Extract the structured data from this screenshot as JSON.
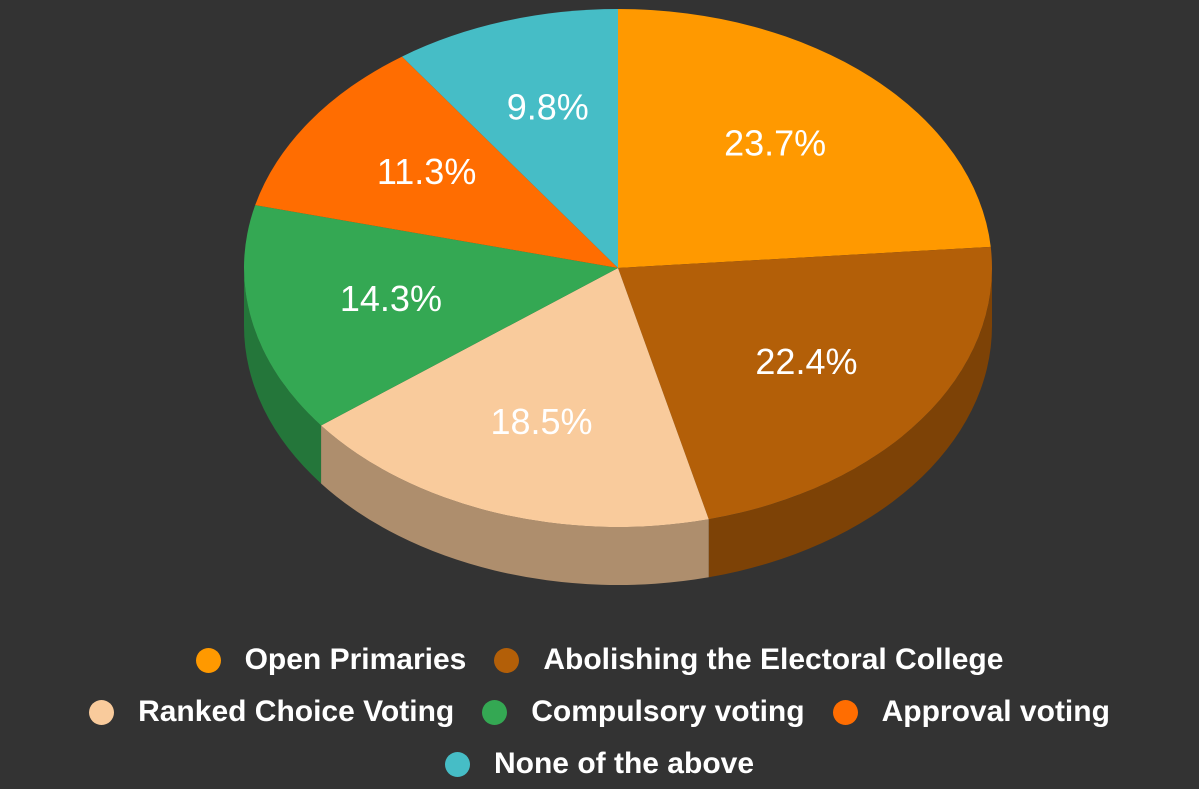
{
  "chart_data": {
    "type": "pie",
    "style": "3d",
    "title": "",
    "slices": [
      {
        "label": "Open Primaries",
        "value": 23.7,
        "display": "23.7%",
        "color": "#FF9900",
        "side_color": "#B36B00"
      },
      {
        "label": "Abolishing the Electoral College",
        "value": 22.4,
        "display": "22.4%",
        "color": "#B35F08",
        "side_color": "#7D4206"
      },
      {
        "label": "Ranked Choice Voting",
        "value": 18.5,
        "display": "18.5%",
        "color": "#F9CB9C",
        "side_color": "#AE8E6D"
      },
      {
        "label": "Compulsory voting",
        "value": 14.3,
        "display": "14.3%",
        "color": "#34A853",
        "side_color": "#24763A"
      },
      {
        "label": "Approval voting",
        "value": 11.3,
        "display": "11.3%",
        "color": "#FF6D01",
        "side_color": "#B34C01"
      },
      {
        "label": "None of the above",
        "value": 9.8,
        "display": "9.8%",
        "color": "#46BDC6",
        "side_color": "#31848B"
      }
    ],
    "legend_position": "bottom",
    "background": "#333333"
  },
  "legend_rows": [
    [
      0,
      1
    ],
    [
      2,
      3,
      4
    ],
    [
      5
    ]
  ]
}
